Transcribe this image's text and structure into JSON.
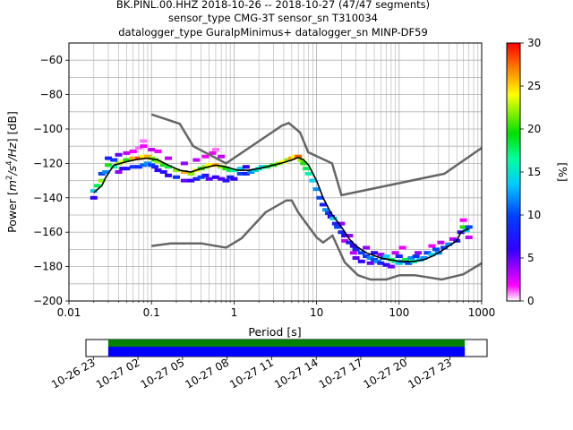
{
  "header": {
    "line1": "BK.PINL.00.HHZ   2018-10-26 -- 2018-10-27  (47/47 segments)",
    "line2": "sensor_type CMG-3T sensor_sn T310034",
    "line3": "datalogger_type GuralpMinimus+ datalogger_sn MINP-DF59"
  },
  "colors": {
    "noise_model": "#666666",
    "mean_curve": "#000000",
    "coverage_data": "#008000",
    "coverage_gaps": "#0000ff"
  },
  "chart_data": [
    {
      "type": "heatmap",
      "title": "",
      "xlabel": "Period [s]",
      "ylabel_prefix": "Power [",
      "ylabel_suffix": "] [dB]",
      "ylabel_unit_base": "m",
      "ylabel_unit_exp1": "2",
      "ylabel_unit_mid": "/s",
      "ylabel_unit_exp2": "4",
      "ylabel_unit_tail": "/Hz",
      "xscale": "log",
      "xlim": [
        0.01,
        1000
      ],
      "ylim": [
        -200,
        -50
      ],
      "xticks": [
        {
          "v": 0.01,
          "label": "0.01"
        },
        {
          "v": 0.1,
          "label": "0.1"
        },
        {
          "v": 1,
          "label": "1"
        },
        {
          "v": 10,
          "label": "10"
        },
        {
          "v": 100,
          "label": "100"
        },
        {
          "v": 1000,
          "label": "1000"
        }
      ],
      "yticks": [
        {
          "v": -60,
          "label": "−60"
        },
        {
          "v": -80,
          "label": "−80"
        },
        {
          "v": -100,
          "label": "−100"
        },
        {
          "v": -120,
          "label": "−120"
        },
        {
          "v": -140,
          "label": "−140"
        },
        {
          "v": -160,
          "label": "−160"
        },
        {
          "v": -180,
          "label": "−180"
        },
        {
          "v": -200,
          "label": "−200"
        }
      ],
      "grid": true,
      "colorbar": {
        "label": "[%]",
        "range": [
          0,
          30
        ],
        "ticks": [
          {
            "v": 0,
            "label": "0"
          },
          {
            "v": 5,
            "label": "5"
          },
          {
            "v": 10,
            "label": "10"
          },
          {
            "v": 15,
            "label": "15"
          },
          {
            "v": 20,
            "label": "20"
          },
          {
            "v": 25,
            "label": "25"
          },
          {
            "v": 30,
            "label": "30"
          }
        ]
      },
      "noise_model_high": [
        [
          0.1,
          -91.5
        ],
        [
          0.22,
          -97
        ],
        [
          0.32,
          -110
        ],
        [
          0.8,
          -120
        ],
        [
          3.8,
          -98
        ],
        [
          4.6,
          -96.5
        ],
        [
          6.3,
          -102
        ],
        [
          7.9,
          -113.5
        ],
        [
          15.4,
          -120
        ],
        [
          20,
          -138.5
        ],
        [
          354,
          -126
        ],
        [
          1000,
          -111
        ]
      ],
      "noise_model_low": [
        [
          0.1,
          -168
        ],
        [
          0.17,
          -166.5
        ],
        [
          0.4,
          -166.5
        ],
        [
          0.8,
          -169
        ],
        [
          1.24,
          -163.5
        ],
        [
          2.4,
          -148.5
        ],
        [
          4.3,
          -141.5
        ],
        [
          5,
          -141.5
        ],
        [
          6,
          -148.5
        ],
        [
          10,
          -163
        ],
        [
          12,
          -166
        ],
        [
          15.6,
          -162
        ],
        [
          21.9,
          -177.5
        ],
        [
          31.6,
          -185
        ],
        [
          45,
          -187.5
        ],
        [
          70,
          -187.5
        ],
        [
          101,
          -185
        ],
        [
          154,
          -185
        ],
        [
          328,
          -187.5
        ],
        [
          600,
          -184.5
        ],
        [
          1000,
          -178
        ]
      ],
      "mean_curve": [
        [
          0.02,
          -137
        ],
        [
          0.025,
          -133
        ],
        [
          0.028,
          -128
        ],
        [
          0.035,
          -121
        ],
        [
          0.05,
          -119
        ],
        [
          0.07,
          -117.5
        ],
        [
          0.09,
          -117
        ],
        [
          0.12,
          -118
        ],
        [
          0.16,
          -121
        ],
        [
          0.22,
          -124
        ],
        [
          0.3,
          -125
        ],
        [
          0.4,
          -123
        ],
        [
          0.6,
          -121
        ],
        [
          0.8,
          -122
        ],
        [
          1.1,
          -124
        ],
        [
          1.5,
          -124
        ],
        [
          2,
          -123
        ],
        [
          3,
          -121
        ],
        [
          4,
          -119.5
        ],
        [
          5,
          -118
        ],
        [
          6,
          -116.5
        ],
        [
          7,
          -118
        ],
        [
          8,
          -121
        ],
        [
          10,
          -130
        ],
        [
          12,
          -140
        ],
        [
          15,
          -149
        ],
        [
          20,
          -157
        ],
        [
          25,
          -164
        ],
        [
          30,
          -168
        ],
        [
          40,
          -172
        ],
        [
          60,
          -175
        ],
        [
          100,
          -177
        ],
        [
          150,
          -177
        ],
        [
          200,
          -176
        ],
        [
          250,
          -174
        ],
        [
          300,
          -172
        ],
        [
          400,
          -168
        ],
        [
          500,
          -165
        ],
        [
          560,
          -160
        ],
        [
          700,
          -158
        ]
      ],
      "psd_cells": [
        [
          0.02,
          -140,
          6
        ],
        [
          0.02,
          -136,
          14
        ],
        [
          0.022,
          -133,
          18
        ],
        [
          0.025,
          -130,
          22
        ],
        [
          0.025,
          -126,
          10
        ],
        [
          0.028,
          -125,
          12
        ],
        [
          0.03,
          -121,
          20
        ],
        [
          0.03,
          -117,
          8
        ],
        [
          0.035,
          -122,
          16
        ],
        [
          0.035,
          -118,
          9
        ],
        [
          0.04,
          -125,
          4
        ],
        [
          0.04,
          -120,
          22
        ],
        [
          0.04,
          -115,
          5
        ],
        [
          0.045,
          -123,
          6
        ],
        [
          0.045,
          -119,
          24
        ],
        [
          0.05,
          -123,
          7
        ],
        [
          0.05,
          -118,
          20
        ],
        [
          0.05,
          -114,
          3
        ],
        [
          0.06,
          -122,
          9
        ],
        [
          0.06,
          -117,
          26
        ],
        [
          0.06,
          -113,
          2
        ],
        [
          0.07,
          -122,
          8
        ],
        [
          0.07,
          -117,
          28
        ],
        [
          0.07,
          -111,
          1
        ],
        [
          0.08,
          -121,
          11
        ],
        [
          0.08,
          -116,
          24
        ],
        [
          0.08,
          -110,
          2
        ],
        [
          0.08,
          -107,
          1
        ],
        [
          0.09,
          -120,
          12
        ],
        [
          0.09,
          -116,
          26
        ],
        [
          0.1,
          -121,
          10
        ],
        [
          0.1,
          -117,
          22
        ],
        [
          0.1,
          -112,
          3
        ],
        [
          0.11,
          -122,
          8
        ],
        [
          0.11,
          -118,
          20
        ],
        [
          0.12,
          -124,
          6
        ],
        [
          0.12,
          -119,
          22
        ],
        [
          0.12,
          -113,
          2
        ],
        [
          0.14,
          -125,
          7
        ],
        [
          0.14,
          -121,
          20
        ],
        [
          0.16,
          -127,
          6
        ],
        [
          0.16,
          -122,
          18
        ],
        [
          0.16,
          -117,
          3
        ],
        [
          0.2,
          -128,
          9
        ],
        [
          0.2,
          -124,
          22
        ],
        [
          0.25,
          -130,
          5
        ],
        [
          0.25,
          -125,
          26
        ],
        [
          0.25,
          -120,
          4
        ],
        [
          0.3,
          -130,
          6
        ],
        [
          0.3,
          -126,
          22
        ],
        [
          0.35,
          -129,
          8
        ],
        [
          0.35,
          -124,
          24
        ],
        [
          0.35,
          -118,
          3
        ],
        [
          0.4,
          -128,
          10
        ],
        [
          0.4,
          -123,
          20
        ],
        [
          0.45,
          -127,
          7
        ],
        [
          0.45,
          -122,
          22
        ],
        [
          0.45,
          -116,
          2
        ],
        [
          0.5,
          -129,
          5
        ],
        [
          0.5,
          -121,
          24
        ],
        [
          0.55,
          -114,
          2
        ],
        [
          0.6,
          -128,
          6
        ],
        [
          0.6,
          -121,
          26
        ],
        [
          0.6,
          -112,
          1
        ],
        [
          0.7,
          -129,
          5
        ],
        [
          0.7,
          -122,
          22
        ],
        [
          0.7,
          -116,
          3
        ],
        [
          0.8,
          -130,
          7
        ],
        [
          0.8,
          -123,
          20
        ],
        [
          0.9,
          -128,
          8
        ],
        [
          0.9,
          -124,
          18
        ],
        [
          1.0,
          -129,
          6
        ],
        [
          1.0,
          -124,
          16
        ],
        [
          1.2,
          -126,
          10
        ],
        [
          1.2,
          -123,
          14
        ],
        [
          1.4,
          -126,
          8
        ],
        [
          1.4,
          -122,
          6
        ],
        [
          1.6,
          -125,
          12
        ],
        [
          1.8,
          -124,
          14
        ],
        [
          2.0,
          -123,
          16
        ],
        [
          2.2,
          -122,
          14
        ],
        [
          2.5,
          -122,
          18
        ],
        [
          3.0,
          -121,
          20
        ],
        [
          3.5,
          -120,
          22
        ],
        [
          4.0,
          -119,
          24
        ],
        [
          4.5,
          -118,
          22
        ],
        [
          5.0,
          -117,
          26
        ],
        [
          5.5,
          -116,
          24
        ],
        [
          6.0,
          -116,
          28
        ],
        [
          6.5,
          -118,
          22
        ],
        [
          7.0,
          -120,
          20
        ],
        [
          7.5,
          -123,
          18
        ],
        [
          8.0,
          -126,
          16
        ],
        [
          9.0,
          -130,
          14
        ],
        [
          10.0,
          -135,
          12
        ],
        [
          11.0,
          -140,
          10
        ],
        [
          12.0,
          -144,
          8
        ],
        [
          13.0,
          -147,
          12
        ],
        [
          14.0,
          -149,
          9
        ],
        [
          15.0,
          -151,
          6
        ],
        [
          16.0,
          -152,
          14
        ],
        [
          17.0,
          -155,
          8
        ],
        [
          18.0,
          -157,
          10
        ],
        [
          20.0,
          -160,
          8
        ],
        [
          20.0,
          -155,
          4
        ],
        [
          22.0,
          -162,
          6
        ],
        [
          22.0,
          -165,
          3
        ],
        [
          25.0,
          -166,
          8
        ],
        [
          25.0,
          -162,
          4
        ],
        [
          28.0,
          -168,
          6
        ],
        [
          28.0,
          -172,
          3
        ],
        [
          30.0,
          -170,
          8
        ],
        [
          30.0,
          -175,
          5
        ],
        [
          35.0,
          -172,
          10
        ],
        [
          35.0,
          -177,
          6
        ],
        [
          40.0,
          -174,
          9
        ],
        [
          40.0,
          -169,
          4
        ],
        [
          45.0,
          -175,
          12
        ],
        [
          45.0,
          -178,
          5
        ],
        [
          50.0,
          -176,
          10
        ],
        [
          50.0,
          -172,
          6
        ],
        [
          55.0,
          -177,
          12
        ],
        [
          60.0,
          -178,
          8
        ],
        [
          60.0,
          -173,
          4
        ],
        [
          65.0,
          -175,
          10
        ],
        [
          70.0,
          -179,
          6
        ],
        [
          70.0,
          -174,
          14
        ],
        [
          80.0,
          -176,
          18
        ],
        [
          80.0,
          -180,
          5
        ],
        [
          90.0,
          -177,
          16
        ],
        [
          90.0,
          -172,
          3
        ],
        [
          100.0,
          -178,
          14
        ],
        [
          100.0,
          -174,
          8
        ],
        [
          110.0,
          -177,
          12
        ],
        [
          110.0,
          -169,
          2
        ],
        [
          120.0,
          -176,
          18
        ],
        [
          130.0,
          -178,
          10
        ],
        [
          140.0,
          -175,
          12
        ],
        [
          150.0,
          -177,
          16
        ],
        [
          160.0,
          -174,
          9
        ],
        [
          170.0,
          -172,
          4
        ],
        [
          180.0,
          -176,
          14
        ],
        [
          200.0,
          -175,
          12
        ],
        [
          220.0,
          -172,
          10
        ],
        [
          250.0,
          -173,
          14
        ],
        [
          250.0,
          -168,
          2
        ],
        [
          280.0,
          -170,
          10
        ],
        [
          300.0,
          -172,
          12
        ],
        [
          320.0,
          -166,
          3
        ],
        [
          350.0,
          -169,
          10
        ],
        [
          400.0,
          -167,
          12
        ],
        [
          450.0,
          -164,
          3
        ],
        [
          500.0,
          -165,
          8
        ],
        [
          560.0,
          -160,
          6
        ],
        [
          600.0,
          -157,
          20
        ],
        [
          600.0,
          -153,
          2
        ],
        [
          650.0,
          -159,
          14
        ],
        [
          700.0,
          -157,
          10
        ],
        [
          700.0,
          -163,
          3
        ]
      ]
    },
    {
      "type": "timeline",
      "title": "",
      "xlabel": "",
      "ylabel": "",
      "xlim": [
        "2018-10-26 22:30",
        "2018-10-28 01:30"
      ],
      "covered": [
        "2018-10-27 00:00",
        "2018-10-28 00:00"
      ],
      "ticks": [
        {
          "t": "2018-10-26 23:00",
          "label": "10-26 23"
        },
        {
          "t": "2018-10-27 02:00",
          "label": "10-27 02"
        },
        {
          "t": "2018-10-27 05:00",
          "label": "10-27 05"
        },
        {
          "t": "2018-10-27 08:00",
          "label": "10-27 08"
        },
        {
          "t": "2018-10-27 11:00",
          "label": "10-27 11"
        },
        {
          "t": "2018-10-27 14:00",
          "label": "10-27 14"
        },
        {
          "t": "2018-10-27 17:00",
          "label": "10-27 17"
        },
        {
          "t": "2018-10-27 20:00",
          "label": "10-27 20"
        },
        {
          "t": "2018-10-27 23:00",
          "label": "10-27 23"
        }
      ]
    }
  ]
}
